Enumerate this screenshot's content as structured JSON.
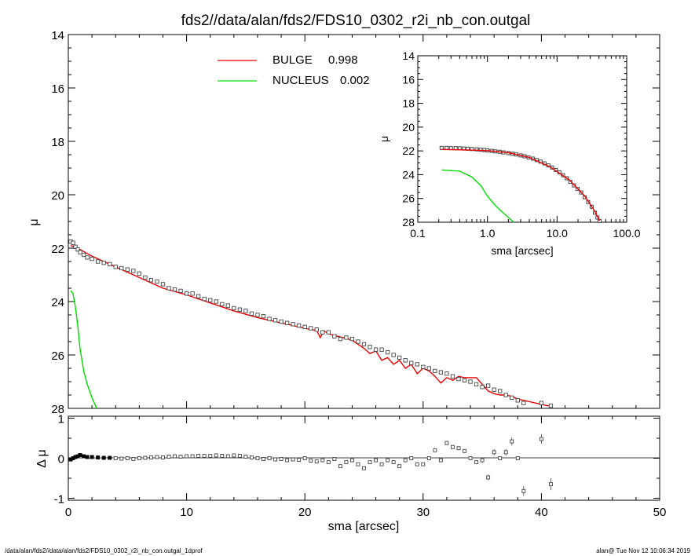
{
  "title": "fds2//data/alan/fds2/FDS10_0302_r2i_nb_con.outgal",
  "footer_left": "/data/alan/fds2//data/alan/fds2/FDS10_0302_r2i_nb_con.outgal_1dprof",
  "footer_right": "alan@  Tue Nov 12 10:06:34 2019",
  "colors": {
    "bulge": "#ee0000",
    "nucleus": "#00dd00",
    "data": "#444444"
  },
  "chart_data": [
    {
      "type": "scatter",
      "panel": "main-profile",
      "xlabel": "",
      "ylabel": "μ",
      "xlim": [
        0,
        50
      ],
      "ylim": [
        28,
        14
      ],
      "y_inverted": true,
      "y_ticks": [
        14,
        16,
        18,
        20,
        22,
        24,
        26,
        28
      ],
      "legend": [
        {
          "label": "BULGE",
          "value": "0.998",
          "color": "#ee0000"
        },
        {
          "label": "NUCLEUS",
          "value": "0.002",
          "color": "#00dd00"
        }
      ],
      "series": [
        {
          "name": "data",
          "style": "open-squares",
          "x": [
            0.2,
            0.4,
            0.6,
            0.8,
            1.0,
            1.3,
            1.6,
            2.0,
            2.5,
            3.0,
            3.5,
            4.0,
            4.5,
            5.0,
            5.5,
            6.0,
            6.5,
            7.0,
            7.5,
            8.0,
            8.5,
            9.0,
            9.5,
            10.0,
            10.5,
            11.0,
            11.5,
            12.0,
            12.5,
            13.0,
            13.5,
            14.0,
            14.5,
            15.0,
            15.5,
            16.0,
            16.5,
            17.0,
            17.5,
            18.0,
            18.5,
            19.0,
            19.5,
            20.0,
            20.5,
            21.0,
            21.5,
            22.0,
            22.5,
            23.0,
            23.5,
            24.0,
            24.5,
            25.0,
            25.5,
            26.0,
            26.5,
            27.0,
            27.5,
            28.0,
            28.5,
            29.0,
            29.5,
            30.0,
            30.5,
            31.0,
            31.5,
            32.0,
            32.5,
            33.0,
            33.5,
            34.0,
            34.5,
            35.0,
            35.5,
            36.0,
            36.5,
            37.0,
            37.5,
            38.0,
            38.5,
            40.0,
            40.8
          ],
          "y": [
            21.75,
            21.8,
            21.95,
            22.05,
            22.15,
            22.25,
            22.35,
            22.4,
            22.5,
            22.55,
            22.6,
            22.7,
            22.75,
            22.8,
            22.85,
            22.95,
            23.1,
            23.2,
            23.25,
            23.35,
            23.5,
            23.55,
            23.6,
            23.7,
            23.7,
            23.8,
            23.9,
            23.95,
            24.0,
            24.1,
            24.15,
            24.25,
            24.3,
            24.35,
            24.45,
            24.5,
            24.55,
            24.65,
            24.7,
            24.75,
            24.8,
            24.85,
            24.9,
            24.95,
            25.0,
            25.05,
            25.15,
            25.15,
            25.3,
            25.4,
            25.35,
            25.4,
            25.5,
            25.6,
            25.7,
            25.8,
            25.8,
            25.9,
            26.0,
            26.1,
            26.2,
            26.3,
            26.35,
            26.45,
            26.5,
            26.6,
            26.65,
            26.7,
            26.8,
            26.9,
            26.95,
            27.0,
            27.1,
            27.2,
            27.15,
            27.3,
            27.35,
            27.5,
            27.6,
            27.7,
            27.8,
            27.8,
            27.9
          ]
        },
        {
          "name": "BULGE",
          "style": "line",
          "x": [
            0.2,
            1.0,
            2.0,
            4.0,
            6.0,
            8.0,
            10.0,
            12.0,
            14.0,
            16.0,
            18.0,
            19.0,
            20.0,
            20.5,
            21.0,
            21.3,
            21.6,
            22.0,
            22.5,
            23.0,
            23.5,
            24.0,
            24.5,
            25.0,
            25.5,
            26.0,
            26.5,
            27.0,
            27.5,
            28.0,
            28.5,
            29.0,
            29.5,
            30.0,
            30.5,
            31.0,
            31.5,
            32.0,
            32.5,
            33.0,
            33.5,
            34.0,
            34.5,
            35.0,
            35.5,
            36.0,
            36.5,
            37.0,
            37.5,
            38.0,
            38.5,
            39.0,
            39.5,
            40.0,
            40.5,
            40.8
          ],
          "y": [
            21.9,
            22.05,
            22.3,
            22.7,
            23.1,
            23.5,
            23.75,
            24.05,
            24.35,
            24.6,
            24.8,
            24.9,
            25.0,
            25.05,
            25.08,
            25.35,
            25.1,
            25.2,
            25.28,
            25.32,
            25.38,
            25.45,
            25.6,
            25.75,
            25.95,
            25.85,
            26.2,
            26.1,
            26.35,
            26.2,
            26.5,
            26.35,
            26.7,
            26.5,
            26.6,
            26.8,
            27.05,
            26.85,
            26.95,
            26.8,
            26.85,
            26.85,
            26.85,
            27.1,
            27.35,
            27.45,
            27.5,
            27.5,
            27.55,
            27.65,
            27.7,
            27.75,
            27.8,
            27.85,
            27.9,
            27.9
          ]
        },
        {
          "name": "NUCLEUS",
          "style": "line",
          "x": [
            0.2,
            0.4,
            0.6,
            0.8,
            1.0,
            1.3,
            1.6,
            2.0,
            2.4
          ],
          "y": [
            23.6,
            23.7,
            24.2,
            24.9,
            25.8,
            26.6,
            27.1,
            27.6,
            28.0
          ]
        }
      ]
    },
    {
      "type": "scatter",
      "panel": "residuals",
      "xlabel": "sma [arcsec]",
      "ylabel": "Δ μ",
      "xlim": [
        0,
        50
      ],
      "ylim": [
        -1.05,
        1.05
      ],
      "x_ticks": [
        0,
        10,
        20,
        30,
        40,
        50
      ],
      "y_ticks": [
        -1,
        0,
        1
      ],
      "series": [
        {
          "name": "residual",
          "style": "open-squares",
          "x": [
            0.2,
            0.4,
            0.6,
            0.8,
            1.0,
            1.3,
            1.6,
            2.0,
            2.5,
            3.0,
            3.5,
            4.0,
            4.5,
            5.0,
            5.5,
            6.0,
            6.5,
            7.0,
            7.5,
            8.0,
            8.5,
            9.0,
            9.5,
            10.0,
            10.5,
            11.0,
            11.5,
            12.0,
            12.5,
            13.0,
            13.5,
            14.0,
            14.5,
            15.0,
            15.5,
            16.0,
            16.5,
            17.0,
            17.5,
            18.0,
            18.5,
            19.0,
            19.5,
            20.0,
            20.5,
            21.0,
            21.5,
            22.0,
            22.5,
            23.0,
            23.5,
            24.0,
            24.5,
            25.0,
            25.5,
            26.0,
            26.5,
            27.0,
            27.5,
            28.0,
            28.5,
            29.0,
            29.5,
            30.0,
            30.5,
            31.0,
            31.5,
            32.0,
            32.5,
            33.0,
            33.5,
            34.0,
            34.5,
            35.0,
            35.5,
            36.0,
            36.5,
            37.0,
            37.5,
            38.0,
            38.5,
            40.0,
            40.8
          ],
          "y": [
            -0.03,
            0.0,
            0.03,
            0.05,
            0.08,
            0.05,
            0.03,
            0.03,
            0.02,
            0.01,
            0.01,
            0.0,
            -0.01,
            0.0,
            -0.02,
            0.0,
            0.01,
            0.02,
            0.03,
            0.02,
            0.04,
            0.05,
            0.04,
            0.05,
            0.05,
            0.06,
            0.06,
            0.06,
            0.07,
            0.06,
            0.05,
            0.07,
            0.06,
            0.04,
            0.02,
            0.0,
            -0.02,
            0.0,
            -0.03,
            -0.02,
            -0.05,
            -0.03,
            -0.04,
            0.0,
            -0.06,
            -0.08,
            -0.05,
            -0.1,
            -0.02,
            -0.2,
            -0.1,
            -0.05,
            -0.15,
            -0.25,
            -0.1,
            -0.05,
            -0.15,
            -0.05,
            -0.1,
            -0.2,
            -0.05,
            0.0,
            -0.15,
            -0.15,
            0.0,
            0.2,
            -0.05,
            0.38,
            0.28,
            0.25,
            0.18,
            0.0,
            -0.1,
            -0.05,
            -0.48,
            0.15,
            0.0,
            0.15,
            0.42,
            0.0,
            -0.82,
            0.48,
            -0.65
          ],
          "errors": [
            0.02,
            0.02,
            0.02,
            0.02,
            0.02,
            0.02,
            0.02,
            0.02,
            0.02,
            0.02,
            0.02,
            0.02,
            0.02,
            0.02,
            0.02,
            0.02,
            0.02,
            0.02,
            0.02,
            0.02,
            0.02,
            0.02,
            0.02,
            0.02,
            0.02,
            0.02,
            0.02,
            0.02,
            0.02,
            0.02,
            0.02,
            0.02,
            0.02,
            0.02,
            0.02,
            0.02,
            0.02,
            0.02,
            0.02,
            0.02,
            0.02,
            0.02,
            0.02,
            0.02,
            0.02,
            0.02,
            0.02,
            0.02,
            0.02,
            0.02,
            0.02,
            0.02,
            0.02,
            0.02,
            0.02,
            0.02,
            0.02,
            0.02,
            0.02,
            0.02,
            0.02,
            0.02,
            0.02,
            0.02,
            0.03,
            0.04,
            0.03,
            0.05,
            0.05,
            0.05,
            0.05,
            0.03,
            0.05,
            0.06,
            0.07,
            0.08,
            0.03,
            0.08,
            0.1,
            0.03,
            0.12,
            0.12,
            0.15
          ]
        }
      ]
    },
    {
      "type": "scatter",
      "panel": "inset-log",
      "xlabel": "sma [arcsec]",
      "ylabel": "μ",
      "x_scale": "log",
      "xlim": [
        0.1,
        100.0
      ],
      "ylim": [
        28,
        14
      ],
      "y_inverted": true,
      "x_tick_labels": [
        "0.1",
        "1.0",
        "10.0",
        "100.0"
      ],
      "x_ticks": [
        0.1,
        1.0,
        10.0,
        100.0
      ],
      "y_ticks": [
        14,
        16,
        18,
        20,
        22,
        24,
        26,
        28
      ],
      "series": [
        {
          "name": "data",
          "style": "open-squares",
          "x": [
            0.22,
            0.26,
            0.3,
            0.35,
            0.4,
            0.46,
            0.52,
            0.6,
            0.7,
            0.8,
            0.9,
            1.0,
            1.15,
            1.3,
            1.5,
            1.7,
            2.0,
            2.3,
            2.6,
            3.0,
            3.4,
            3.9,
            4.5,
            5.1,
            5.8,
            6.6,
            7.5,
            8.5,
            9.6,
            10.8,
            12.2,
            13.8,
            15.5,
            17.5,
            19.7,
            22.2,
            25.0,
            28.0,
            31.5,
            35.0,
            38.0,
            40.8
          ],
          "y": [
            21.75,
            21.75,
            21.76,
            21.77,
            21.78,
            21.8,
            21.82,
            21.84,
            21.87,
            21.9,
            21.93,
            21.96,
            22.0,
            22.04,
            22.08,
            22.13,
            22.18,
            22.24,
            22.3,
            22.38,
            22.45,
            22.55,
            22.65,
            22.77,
            22.9,
            23.05,
            23.22,
            23.4,
            23.6,
            23.8,
            24.05,
            24.3,
            24.6,
            24.9,
            25.2,
            25.5,
            25.9,
            26.3,
            26.7,
            27.2,
            27.6,
            27.9
          ]
        },
        {
          "name": "BULGE",
          "style": "line",
          "x": [
            0.22,
            0.5,
            1.0,
            2.0,
            4.0,
            8.0,
            15.0,
            25.0,
            35.0,
            40.8
          ],
          "y": [
            21.88,
            21.92,
            21.98,
            22.15,
            22.55,
            23.35,
            24.45,
            25.8,
            27.1,
            27.9
          ]
        },
        {
          "name": "NUCLEUS",
          "style": "line",
          "x": [
            0.22,
            0.4,
            0.6,
            0.8,
            1.0,
            1.3,
            1.6,
            2.0,
            2.4
          ],
          "y": [
            23.6,
            23.7,
            24.2,
            24.9,
            25.8,
            26.6,
            27.1,
            27.6,
            28.0
          ]
        }
      ]
    }
  ]
}
